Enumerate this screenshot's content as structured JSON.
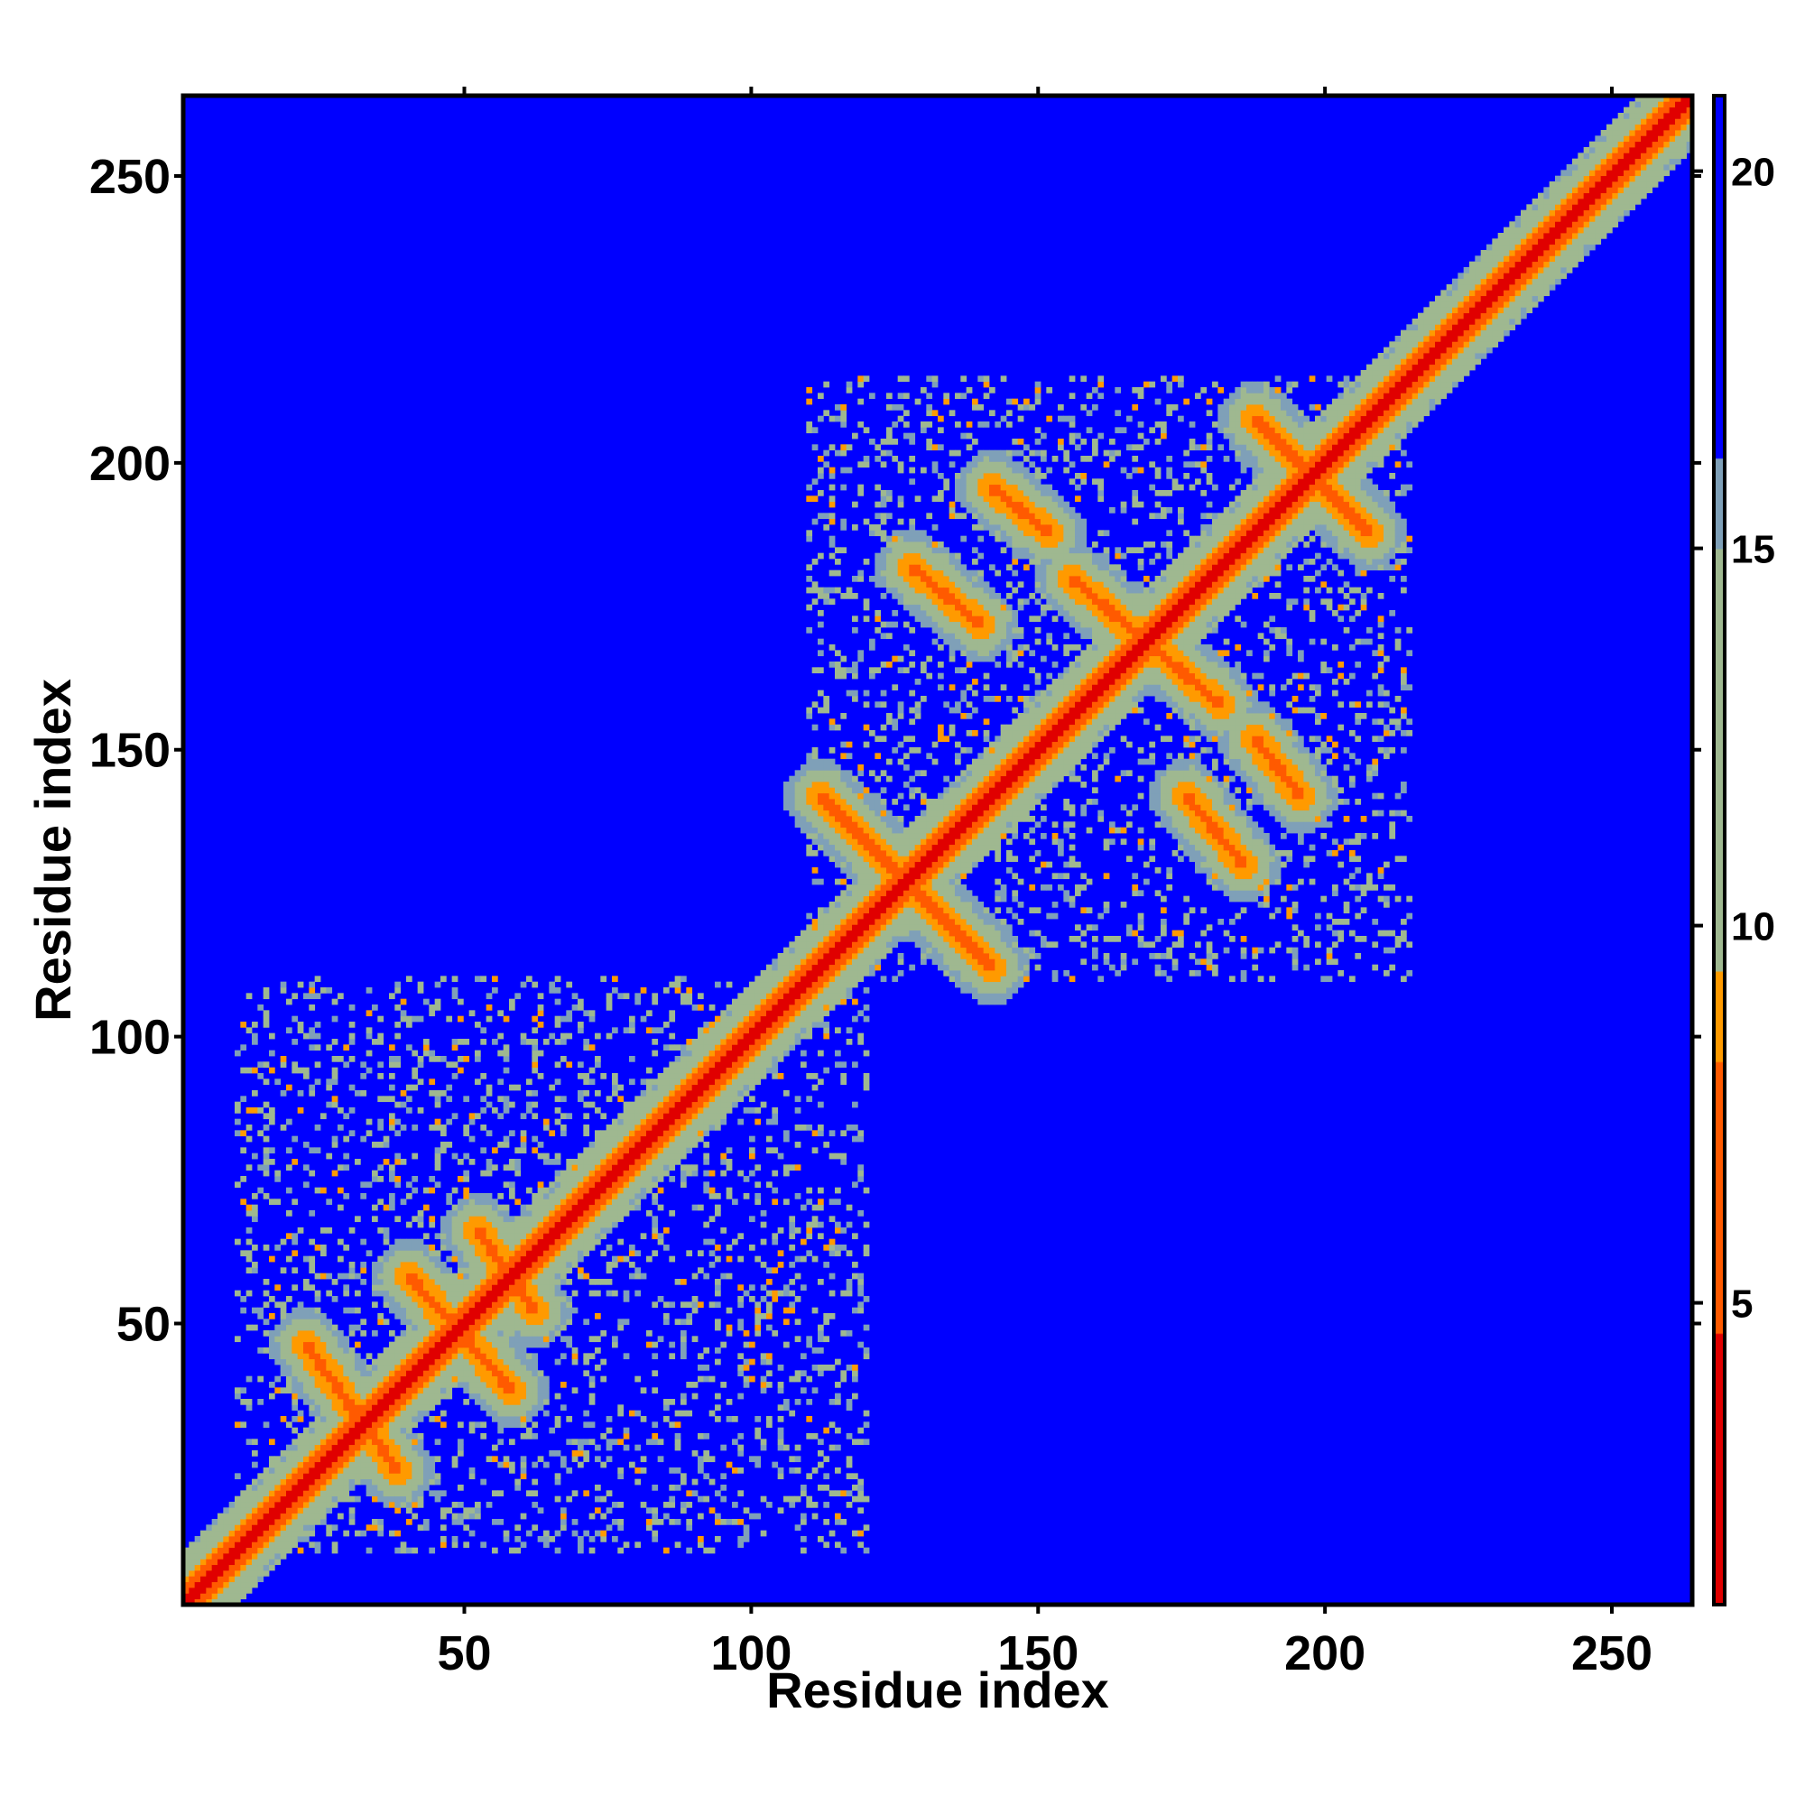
{
  "chart_data": {
    "type": "heatmap",
    "title": "",
    "xlabel": "Residue index",
    "ylabel": "Residue index",
    "n_residues": 264,
    "xlim": [
      1,
      264
    ],
    "ylim": [
      1,
      264
    ],
    "x_ticks": [
      50,
      100,
      150,
      200,
      250
    ],
    "y_ticks": [
      50,
      100,
      150,
      200,
      250
    ],
    "colorbar": {
      "ticks": [
        5,
        10,
        15,
        20
      ],
      "range": [
        1,
        21
      ],
      "colors": [
        "#e00000",
        "#ff5a00",
        "#ff9a00",
        "#9fb890",
        "#7fa0b8",
        "#0000ff"
      ]
    },
    "diagonal_band_width": 3,
    "contact_features": [
      {
        "kind": "antidiagonal",
        "from": [
          22,
          46
        ],
        "to": [
          38,
          24
        ]
      },
      {
        "kind": "antidiagonal",
        "from": [
          40,
          58
        ],
        "to": [
          58,
          38
        ]
      },
      {
        "kind": "antidiagonal",
        "from": [
          52,
          66
        ],
        "to": [
          62,
          52
        ]
      },
      {
        "kind": "antidiagonal",
        "from": [
          112,
          142
        ],
        "to": [
          142,
          112
        ]
      },
      {
        "kind": "antidiagonal",
        "from": [
          128,
          182
        ],
        "to": [
          140,
          172
        ]
      },
      {
        "kind": "antidiagonal",
        "from": [
          142,
          196
        ],
        "to": [
          152,
          188
        ]
      },
      {
        "kind": "antidiagonal",
        "from": [
          156,
          180
        ],
        "to": [
          182,
          158
        ]
      },
      {
        "kind": "antidiagonal",
        "from": [
          176,
          142
        ],
        "to": [
          186,
          130
        ]
      },
      {
        "kind": "antidiagonal",
        "from": [
          188,
          152
        ],
        "to": [
          196,
          142
        ]
      },
      {
        "kind": "antidiagonal",
        "from": [
          188,
          208
        ],
        "to": [
          208,
          188
        ]
      },
      {
        "kind": "region",
        "x": [
          10,
          120
        ],
        "y": [
          10,
          110
        ]
      },
      {
        "kind": "region",
        "x": [
          110,
          215
        ],
        "y": [
          110,
          215
        ]
      }
    ]
  }
}
